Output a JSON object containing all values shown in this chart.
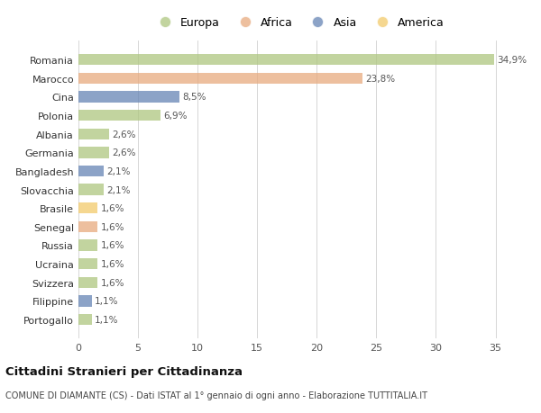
{
  "countries": [
    "Romania",
    "Marocco",
    "Cina",
    "Polonia",
    "Albania",
    "Germania",
    "Bangladesh",
    "Slovacchia",
    "Brasile",
    "Senegal",
    "Russia",
    "Ucraina",
    "Svizzera",
    "Filippine",
    "Portogallo"
  ],
  "values": [
    34.9,
    23.8,
    8.5,
    6.9,
    2.6,
    2.6,
    2.1,
    2.1,
    1.6,
    1.6,
    1.6,
    1.6,
    1.6,
    1.1,
    1.1
  ],
  "labels": [
    "34,9%",
    "23,8%",
    "8,5%",
    "6,9%",
    "2,6%",
    "2,6%",
    "2,1%",
    "2,1%",
    "1,6%",
    "1,6%",
    "1,6%",
    "1,6%",
    "1,6%",
    "1,1%",
    "1,1%"
  ],
  "continents": [
    "Europa",
    "Africa",
    "Asia",
    "Europa",
    "Europa",
    "Europa",
    "Asia",
    "Europa",
    "America",
    "Africa",
    "Europa",
    "Europa",
    "Europa",
    "Asia",
    "Europa"
  ],
  "colors": {
    "Europa": "#aec67f",
    "Africa": "#e8aa7e",
    "Asia": "#6685b5",
    "America": "#f2ca6b"
  },
  "title": "Cittadini Stranieri per Cittadinanza",
  "subtitle": "COMUNE DI DIAMANTE (CS) - Dati ISTAT al 1° gennaio di ogni anno - Elaborazione TUTTITALIA.IT",
  "xlim": [
    0,
    37
  ],
  "xticks": [
    0,
    5,
    10,
    15,
    20,
    25,
    30,
    35
  ],
  "background_color": "#ffffff",
  "bar_alpha": 0.75,
  "legend_order": [
    "Europa",
    "Africa",
    "Asia",
    "America"
  ]
}
